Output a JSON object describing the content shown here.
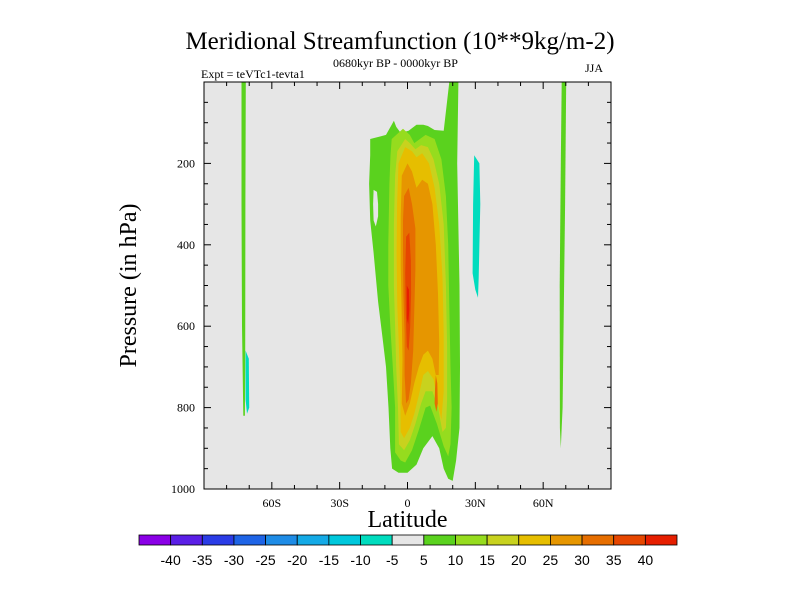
{
  "chart_data": {
    "type": "contour",
    "title": "Meridional Streamfunction (10**9kg/m-2)",
    "subtitle_left": "Expt = teVTc1-tevta1",
    "subtitle_center": "0680kyr BP - 0000kyr BP",
    "subtitle_right": "JJA",
    "xlabel": "Latitude",
    "ylabel": "Pressure (in hPa)",
    "xlim": [
      -90,
      90
    ],
    "ylim": [
      1000,
      0
    ],
    "xticks": [
      {
        "value": -60,
        "label": "60S"
      },
      {
        "value": -30,
        "label": "30S"
      },
      {
        "value": 0,
        "label": "0"
      },
      {
        "value": 30,
        "label": "30N"
      },
      {
        "value": 60,
        "label": "60N"
      }
    ],
    "yticks": [
      {
        "value": 200,
        "label": "200"
      },
      {
        "value": 400,
        "label": "400"
      },
      {
        "value": 600,
        "label": "600"
      },
      {
        "value": 800,
        "label": "800"
      },
      {
        "value": 1000,
        "label": "1000"
      }
    ],
    "background_color": "#e6e6e6",
    "colorbar": {
      "labels": [
        "-40",
        "-35",
        "-30",
        "-25",
        "-20",
        "-15",
        "-10",
        "-5",
        "5",
        "10",
        "15",
        "20",
        "25",
        "30",
        "35",
        "40"
      ],
      "colors": [
        "#8a00e6",
        "#5a1ee6",
        "#2a3ce6",
        "#1e64e6",
        "#1e8ce6",
        "#14aae6",
        "#00c8dc",
        "#00dcbe",
        "#e6e6e6",
        "#5ad21e",
        "#96dc1e",
        "#c8d21e",
        "#e6be00",
        "#e69600",
        "#e66e00",
        "#e64600",
        "#e61e00"
      ]
    },
    "regions": [
      {
        "name": "left-green-strip",
        "level": 5,
        "color": "#5ad21e",
        "points": [
          [
            -73.4,
            0
          ],
          [
            -71.5,
            0
          ],
          [
            -71.7,
            300
          ],
          [
            -71.8,
            700
          ],
          [
            -71.9,
            820
          ],
          [
            -72.6,
            820
          ],
          [
            -73.2,
            600
          ],
          [
            -73.4,
            300
          ]
        ]
      },
      {
        "name": "left-cyan-blob",
        "level": -5,
        "color": "#00dcbe",
        "points": [
          [
            -71.6,
            660
          ],
          [
            -70.2,
            680
          ],
          [
            -70.0,
            800
          ],
          [
            -71.0,
            815
          ],
          [
            -71.6,
            780
          ]
        ]
      },
      {
        "name": "right-green-strip",
        "level": 5,
        "color": "#5ad21e",
        "points": [
          [
            68.2,
            0
          ],
          [
            70.2,
            0
          ],
          [
            69.7,
            300
          ],
          [
            68.6,
            800
          ],
          [
            67.8,
            900
          ],
          [
            67.4,
            850
          ],
          [
            67.3,
            500
          ],
          [
            67.8,
            200
          ]
        ]
      },
      {
        "name": "right-cyan-blob",
        "level": -5,
        "color": "#00dcbe",
        "points": [
          [
            29.5,
            180
          ],
          [
            31.8,
            200
          ],
          [
            32.2,
            300
          ],
          [
            31.8,
            400
          ],
          [
            31.5,
            480
          ],
          [
            31.2,
            530
          ],
          [
            30.0,
            510
          ],
          [
            28.8,
            470
          ],
          [
            29.0,
            300
          ]
        ]
      },
      {
        "name": "center-5",
        "level": 5,
        "color": "#5ad21e",
        "points": [
          [
            -16.5,
            140
          ],
          [
            -9.5,
            130
          ],
          [
            -7.0,
            105
          ],
          [
            -6.0,
            95
          ],
          [
            -5.0,
            110
          ],
          [
            -3.0,
            125
          ],
          [
            0.5,
            120
          ],
          [
            4.0,
            105
          ],
          [
            7.0,
            105
          ],
          [
            9.0,
            108
          ],
          [
            12.0,
            118
          ],
          [
            16.0,
            120
          ],
          [
            18.5,
            0
          ],
          [
            22.5,
            0
          ],
          [
            22.0,
            200
          ],
          [
            23.0,
            500
          ],
          [
            23.2,
            700
          ],
          [
            23.0,
            850
          ],
          [
            21.5,
            930
          ],
          [
            20.0,
            980
          ],
          [
            18.0,
            975
          ],
          [
            16.0,
            950
          ],
          [
            14.0,
            900
          ],
          [
            11.0,
            870
          ],
          [
            7.0,
            900
          ],
          [
            4.0,
            940
          ],
          [
            0.0,
            960
          ],
          [
            -4.0,
            960
          ],
          [
            -6.8,
            950
          ],
          [
            -7.6,
            900
          ],
          [
            -8.4,
            800
          ],
          [
            -9.5,
            700
          ],
          [
            -11.0,
            630
          ],
          [
            -13.0,
            540
          ],
          [
            -15.0,
            420
          ],
          [
            -16.5,
            340
          ],
          [
            -17.0,
            250
          ],
          [
            -16.5,
            180
          ]
        ]
      },
      {
        "name": "center-10",
        "level": 10,
        "color": "#96dc1e",
        "points": [
          [
            -7.0,
            140
          ],
          [
            -2.0,
            115
          ],
          [
            1.0,
            130
          ],
          [
            3.0,
            150
          ],
          [
            5.5,
            140
          ],
          [
            8.0,
            130
          ],
          [
            12.0,
            140
          ],
          [
            15.0,
            190
          ],
          [
            17.0,
            280
          ],
          [
            18.0,
            400
          ],
          [
            18.5,
            550
          ],
          [
            19.0,
            700
          ],
          [
            19.5,
            800
          ],
          [
            19.0,
            890
          ],
          [
            18.0,
            920
          ],
          [
            16.0,
            895
          ],
          [
            13.0,
            840
          ],
          [
            10.0,
            795
          ],
          [
            8.0,
            800
          ],
          [
            5.0,
            855
          ],
          [
            2.0,
            905
          ],
          [
            -1.0,
            935
          ],
          [
            -3.0,
            930
          ],
          [
            -5.5,
            910
          ],
          [
            -5.5,
            800
          ],
          [
            -6.5,
            700
          ],
          [
            -7.6,
            600
          ],
          [
            -8.5,
            500
          ],
          [
            -8.5,
            400
          ],
          [
            -8.0,
            250
          ],
          [
            -7.5,
            180
          ]
        ]
      },
      {
        "name": "center-15",
        "level": 15,
        "color": "#c8d21e",
        "points": [
          [
            -4.5,
            170
          ],
          [
            -1.0,
            140
          ],
          [
            1.0,
            150
          ],
          [
            3.5,
            165
          ],
          [
            6.0,
            155
          ],
          [
            9.0,
            160
          ],
          [
            11.5,
            190
          ],
          [
            14.0,
            250
          ],
          [
            16.0,
            350
          ],
          [
            17.0,
            500
          ],
          [
            17.5,
            650
          ],
          [
            17.5,
            780
          ],
          [
            17.0,
            850
          ],
          [
            15.5,
            860
          ],
          [
            13.5,
            800
          ],
          [
            11.0,
            760
          ],
          [
            8.0,
            760
          ],
          [
            6.0,
            790
          ],
          [
            3.5,
            840
          ],
          [
            1.0,
            880
          ],
          [
            -1.5,
            905
          ],
          [
            -3.8,
            890
          ],
          [
            -4.2,
            800
          ],
          [
            -5.0,
            700
          ],
          [
            -5.5,
            600
          ],
          [
            -6.0,
            500
          ],
          [
            -6.0,
            350
          ],
          [
            -5.5,
            230
          ]
        ]
      },
      {
        "name": "center-20",
        "level": 20,
        "color": "#e6be00",
        "points": [
          [
            -4.0,
            200
          ],
          [
            -1.0,
            160
          ],
          [
            2.0,
            170
          ],
          [
            4.0,
            185
          ],
          [
            6.5,
            175
          ],
          [
            9.5,
            200
          ],
          [
            12.0,
            260
          ],
          [
            14.0,
            350
          ],
          [
            15.5,
            480
          ],
          [
            16.0,
            620
          ],
          [
            16.0,
            760
          ],
          [
            15.0,
            830
          ],
          [
            13.5,
            790
          ],
          [
            11.5,
            730
          ],
          [
            9.0,
            710
          ],
          [
            7.0,
            720
          ],
          [
            5.0,
            770
          ],
          [
            3.0,
            815
          ],
          [
            1.0,
            850
          ],
          [
            -1.5,
            875
          ],
          [
            -3.0,
            860
          ],
          [
            -3.2,
            760
          ],
          [
            -3.8,
            650
          ],
          [
            -4.5,
            550
          ],
          [
            -4.8,
            420
          ],
          [
            -4.6,
            300
          ]
        ]
      },
      {
        "name": "center-25",
        "level": 25,
        "color": "#e69600",
        "points": [
          [
            -2.5,
            230
          ],
          [
            0.0,
            200
          ],
          [
            2.0,
            220
          ],
          [
            4.0,
            260
          ],
          [
            6.5,
            240
          ],
          [
            9.0,
            250
          ],
          [
            11.0,
            300
          ],
          [
            12.5,
            400
          ],
          [
            13.5,
            520
          ],
          [
            14.0,
            640
          ],
          [
            13.8,
            720
          ],
          [
            12.5,
            720
          ],
          [
            11.0,
            680
          ],
          [
            9.0,
            660
          ],
          [
            7.0,
            670
          ],
          [
            5.0,
            700
          ],
          [
            3.0,
            740
          ],
          [
            1.0,
            790
          ],
          [
            -1.0,
            820
          ],
          [
            -2.5,
            790
          ],
          [
            -2.2,
            680
          ],
          [
            -2.6,
            560
          ],
          [
            -3.0,
            450
          ],
          [
            -3.0,
            330
          ]
        ]
      },
      {
        "name": "center-30",
        "level": 30,
        "color": "#e66e00",
        "points": [
          [
            -1.5,
            280
          ],
          [
            0.5,
            260
          ],
          [
            2.0,
            300
          ],
          [
            3.5,
            360
          ],
          [
            3.5,
            460
          ],
          [
            3.0,
            560
          ],
          [
            2.5,
            660
          ],
          [
            1.5,
            740
          ],
          [
            0.5,
            780
          ],
          [
            -0.6,
            790
          ],
          [
            -1.3,
            720
          ],
          [
            -1.3,
            620
          ],
          [
            -1.8,
            520
          ],
          [
            -2.0,
            420
          ],
          [
            -2.0,
            340
          ]
        ]
      },
      {
        "name": "center-30-right",
        "level": 30,
        "color": "#e66e00",
        "points": [
          [
            12.5,
            720
          ],
          [
            13.2,
            740
          ],
          [
            13.4,
            790
          ],
          [
            12.8,
            810
          ],
          [
            12.0,
            790
          ],
          [
            12.2,
            750
          ]
        ]
      },
      {
        "name": "center-35",
        "level": 35,
        "color": "#e64600",
        "points": [
          [
            -0.6,
            380
          ],
          [
            0.8,
            370
          ],
          [
            1.5,
            440
          ],
          [
            1.6,
            520
          ],
          [
            1.2,
            600
          ],
          [
            0.5,
            660
          ],
          [
            -0.3,
            650
          ],
          [
            -0.8,
            560
          ],
          [
            -1.0,
            470
          ]
        ]
      },
      {
        "name": "center-40",
        "level": 40,
        "color": "#e61e00",
        "points": [
          [
            -0.3,
            500
          ],
          [
            0.6,
            510
          ],
          [
            0.8,
            560
          ],
          [
            0.3,
            595
          ],
          [
            -0.3,
            580
          ]
        ]
      },
      {
        "name": "center-left-hole",
        "level": 5,
        "color": "#e6e6e6",
        "points": [
          [
            -15.0,
            265
          ],
          [
            -13.5,
            270
          ],
          [
            -13.0,
            300
          ],
          [
            -13.0,
            330
          ],
          [
            -14.0,
            355
          ],
          [
            -15.0,
            340
          ],
          [
            -15.2,
            300
          ]
        ]
      }
    ]
  }
}
